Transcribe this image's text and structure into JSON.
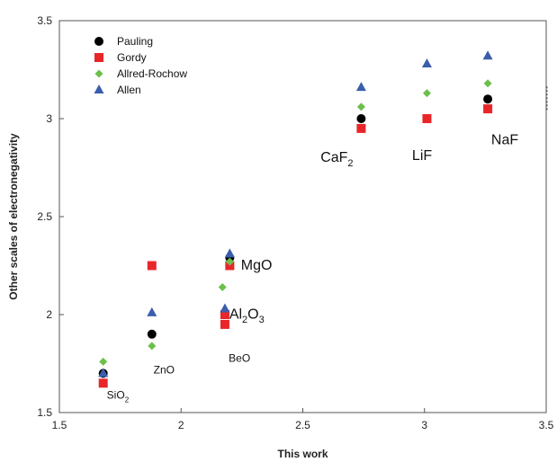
{
  "chart_data": {
    "type": "scatter",
    "xlabel": "This work",
    "ylabel": "Other scales of electronegativity",
    "xlim": [
      1.5,
      3.5
    ],
    "ylim": [
      1.5,
      3.5
    ],
    "xticks": [
      "1.5",
      "2",
      "2.5",
      "3",
      "3.5"
    ],
    "yticks": [
      "1.5",
      "2",
      "2.5",
      "3",
      "3.5"
    ],
    "grid": false,
    "legend_position": "top-left",
    "series": [
      {
        "name": "Pauling",
        "marker": "circle",
        "color": "#000000",
        "points": [
          {
            "x": 1.68,
            "y": 1.7
          },
          {
            "x": 1.88,
            "y": 1.9
          },
          {
            "x": 2.18,
            "y": 2.0
          },
          {
            "x": 2.2,
            "y": 2.29
          },
          {
            "x": 2.74,
            "y": 3.0
          },
          {
            "x": 3.26,
            "y": 3.1
          }
        ]
      },
      {
        "name": "Gordy",
        "marker": "square",
        "color": "#e8262a",
        "points": [
          {
            "x": 1.68,
            "y": 1.65
          },
          {
            "x": 1.88,
            "y": 2.25
          },
          {
            "x": 2.18,
            "y": 1.95
          },
          {
            "x": 2.18,
            "y": 2.0
          },
          {
            "x": 2.2,
            "y": 2.25
          },
          {
            "x": 2.74,
            "y": 2.95
          },
          {
            "x": 3.01,
            "y": 3.0
          },
          {
            "x": 3.26,
            "y": 3.05
          }
        ]
      },
      {
        "name": "Allred-Rochow",
        "marker": "diamond",
        "color": "#6cc04a",
        "points": [
          {
            "x": 1.68,
            "y": 1.76
          },
          {
            "x": 1.88,
            "y": 1.84
          },
          {
            "x": 2.17,
            "y": 2.14
          },
          {
            "x": 2.2,
            "y": 2.27
          },
          {
            "x": 2.74,
            "y": 3.06
          },
          {
            "x": 3.01,
            "y": 3.13
          },
          {
            "x": 3.26,
            "y": 3.18
          }
        ]
      },
      {
        "name": "Allen",
        "marker": "triangle",
        "color": "#3a5eab",
        "points": [
          {
            "x": 1.68,
            "y": 1.7
          },
          {
            "x": 1.88,
            "y": 2.01
          },
          {
            "x": 2.18,
            "y": 2.03
          },
          {
            "x": 2.2,
            "y": 2.31
          },
          {
            "x": 2.74,
            "y": 3.16
          },
          {
            "x": 3.01,
            "y": 3.28
          },
          {
            "x": 3.26,
            "y": 3.32
          }
        ]
      }
    ],
    "annotations": [
      {
        "base": "SiO",
        "sub": "2",
        "after": "",
        "x": 1.74,
        "y": 1.57,
        "size": "small"
      },
      {
        "base": "ZnO",
        "sub": "",
        "after": "",
        "x": 1.93,
        "y": 1.7,
        "size": "small"
      },
      {
        "base": "BeO",
        "sub": "",
        "after": "",
        "x": 2.24,
        "y": 1.76,
        "size": "small"
      },
      {
        "base": "Al",
        "sub": "2",
        "after": "O",
        "sub2": "3",
        "x": 2.27,
        "y": 1.98,
        "size": "large"
      },
      {
        "base": "MgO",
        "sub": "",
        "after": "",
        "x": 2.31,
        "y": 2.23,
        "size": "large"
      },
      {
        "base": "CaF",
        "sub": "2",
        "after": "",
        "x": 2.64,
        "y": 2.78,
        "size": "large"
      },
      {
        "base": "LiF",
        "sub": "",
        "after": "",
        "x": 2.99,
        "y": 2.79,
        "size": "large"
      },
      {
        "base": "NaF",
        "sub": "",
        "after": "",
        "x": 3.33,
        "y": 2.87,
        "size": "large"
      }
    ]
  }
}
